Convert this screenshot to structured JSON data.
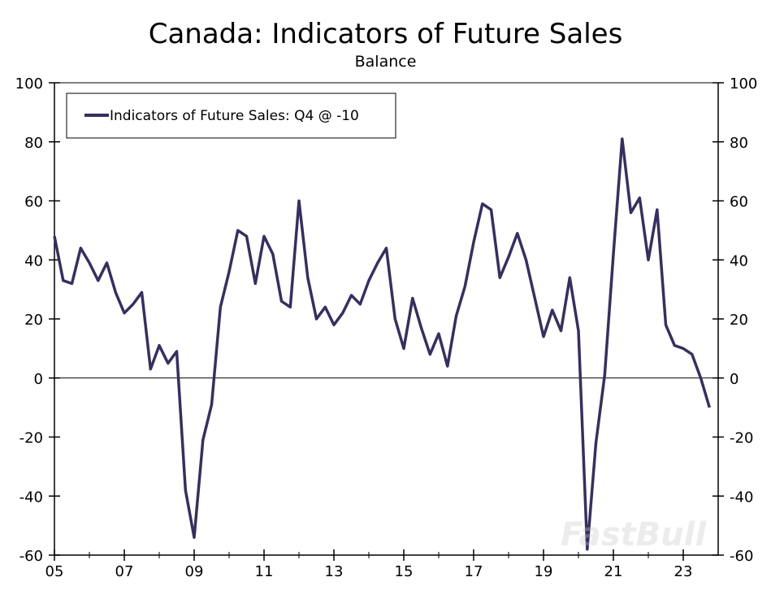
{
  "chart_data": {
    "type": "line",
    "title": "Canada: Indicators of Future Sales",
    "subtitle": "Balance",
    "xlabel": "",
    "ylabel": "",
    "ylim": [
      -60,
      100
    ],
    "xlim": [
      2005,
      2024
    ],
    "yticks": [
      "100",
      "80",
      "60",
      "40",
      "20",
      "0",
      "-20",
      "-40",
      "-60"
    ],
    "xticks": [
      "05",
      "07",
      "09",
      "11",
      "13",
      "15",
      "17",
      "19",
      "21",
      "23"
    ],
    "legend_position": "top-left",
    "grid": false,
    "series": [
      {
        "name": "Indicators of Future Sales: Q4 @ -10",
        "color": "#35305e",
        "frequency": "quarterly",
        "start": "2005 Q1",
        "values": [
          48,
          33,
          32,
          44,
          39,
          33,
          39,
          29,
          22,
          25,
          29,
          3,
          11,
          5,
          9,
          -38,
          -54,
          -21,
          -9,
          24,
          36,
          50,
          48,
          32,
          48,
          42,
          26,
          24,
          60,
          34,
          20,
          24,
          18,
          22,
          28,
          25,
          33,
          39,
          44,
          20,
          10,
          27,
          17,
          8,
          15,
          4,
          21,
          31,
          46,
          59,
          57,
          34,
          41,
          49,
          40,
          27,
          14,
          23,
          16,
          34,
          16,
          -58,
          -22,
          1,
          42,
          81,
          56,
          61,
          40,
          57,
          18,
          11,
          10,
          8,
          0,
          -10
        ]
      }
    ]
  },
  "watermark": "FastBull"
}
